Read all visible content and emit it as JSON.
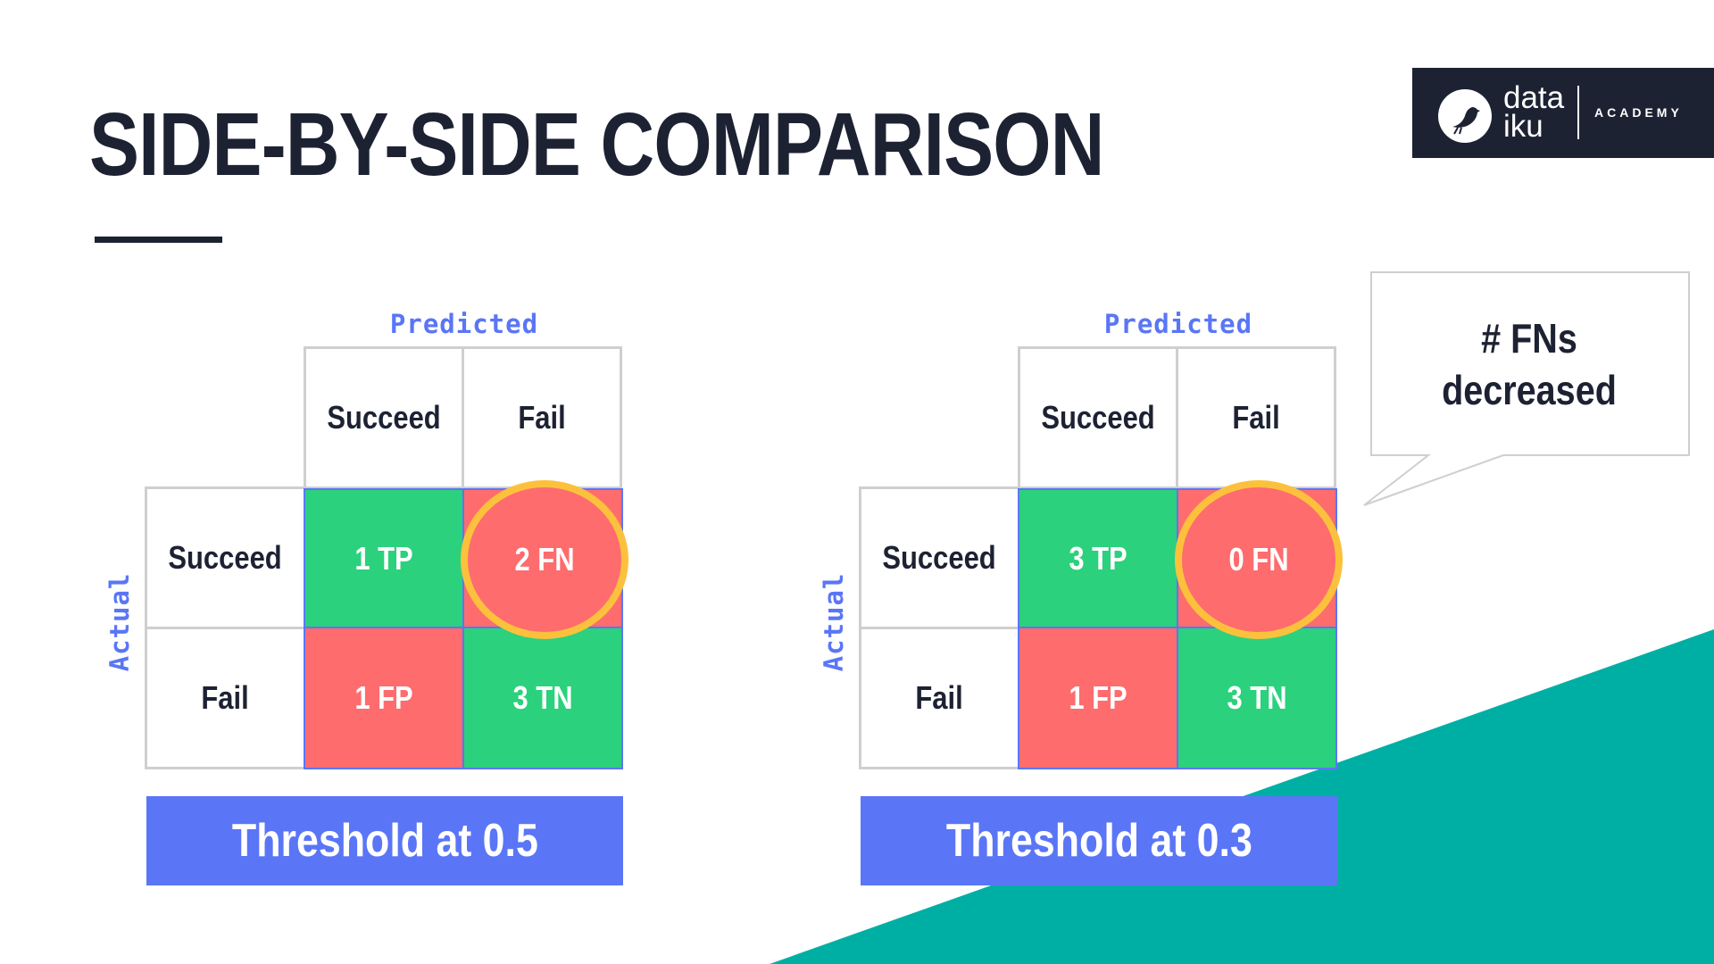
{
  "slide": {
    "title": "SIDE-BY-SIDE COMPARISON",
    "accent_color": "#1d2233",
    "teal_color": "#00afa4"
  },
  "logo": {
    "word_line1": "data",
    "word_line2": "iku",
    "academy": "ACADEMY",
    "icon": "bird-icon"
  },
  "callout": {
    "line1": "# FNs",
    "line2": "decreased"
  },
  "matrices": [
    {
      "predicted_label": "Predicted",
      "actual_label": "Actual",
      "col_headers": [
        "Succeed",
        "Fail"
      ],
      "row_headers": [
        "Succeed",
        "Fail"
      ],
      "cells": {
        "tp": "1 TP",
        "fn": "2 FN",
        "fp": "1 FP",
        "tn": "3 TN"
      },
      "threshold": "Threshold at 0.5"
    },
    {
      "predicted_label": "Predicted",
      "actual_label": "Actual",
      "col_headers": [
        "Succeed",
        "Fail"
      ],
      "row_headers": [
        "Succeed",
        "Fail"
      ],
      "cells": {
        "tp": "3 TP",
        "fn": "0 FN",
        "fp": "1 FP",
        "tn": "3 TN"
      },
      "threshold": "Threshold at 0.3"
    }
  ],
  "colors": {
    "positive": "#2bd17c",
    "negative": "#fe6c6e",
    "highlight_ring": "#fcc13c",
    "label_blue": "#5a76f6"
  }
}
